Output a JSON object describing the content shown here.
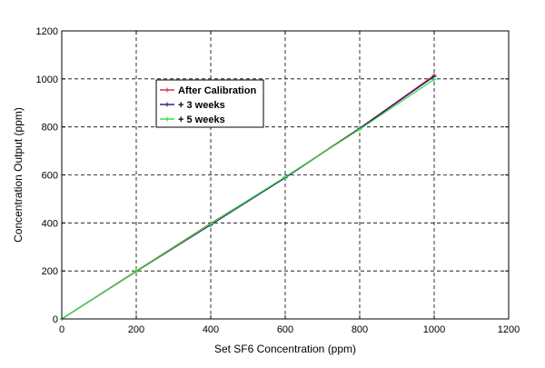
{
  "chart_data": {
    "type": "line",
    "title": "",
    "xlabel": "Set SF6 Concentration (ppm)",
    "ylabel": "Concentration Output (ppm)",
    "xlim": [
      0,
      1200
    ],
    "ylim": [
      0,
      1200
    ],
    "xticks": [
      0,
      200,
      400,
      600,
      800,
      1000,
      1200
    ],
    "yticks": [
      0,
      200,
      400,
      600,
      800,
      1000,
      1200
    ],
    "grid": true,
    "legend_position": "upper-left",
    "series": [
      {
        "name": "After Calibration",
        "color": "#cc2244",
        "x": [
          0,
          200,
          400,
          600,
          800,
          1000
        ],
        "y": [
          0,
          200,
          398,
          590,
          795,
          1015
        ]
      },
      {
        "name": "+ 3 weeks",
        "color": "#1a1a8c",
        "x": [
          0,
          200,
          400,
          600,
          800,
          1000
        ],
        "y": [
          0,
          198,
          392,
          588,
          793,
          1010
        ]
      },
      {
        "name": "+ 5 weeks",
        "color": "#33dd33",
        "x": [
          0,
          200,
          400,
          600,
          800,
          1000
        ],
        "y": [
          0,
          199,
          396,
          592,
          790,
          998
        ]
      }
    ]
  }
}
